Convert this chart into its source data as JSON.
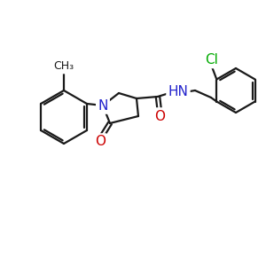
{
  "bg_color": "#ffffff",
  "atom_colors": {
    "N": "#2222cc",
    "O": "#cc0000",
    "Cl": "#00aa00",
    "C": "#1a1a1a"
  },
  "bond_color": "#1a1a1a",
  "bond_width": 1.6,
  "font_size_atom": 10,
  "font_size_label": 9
}
